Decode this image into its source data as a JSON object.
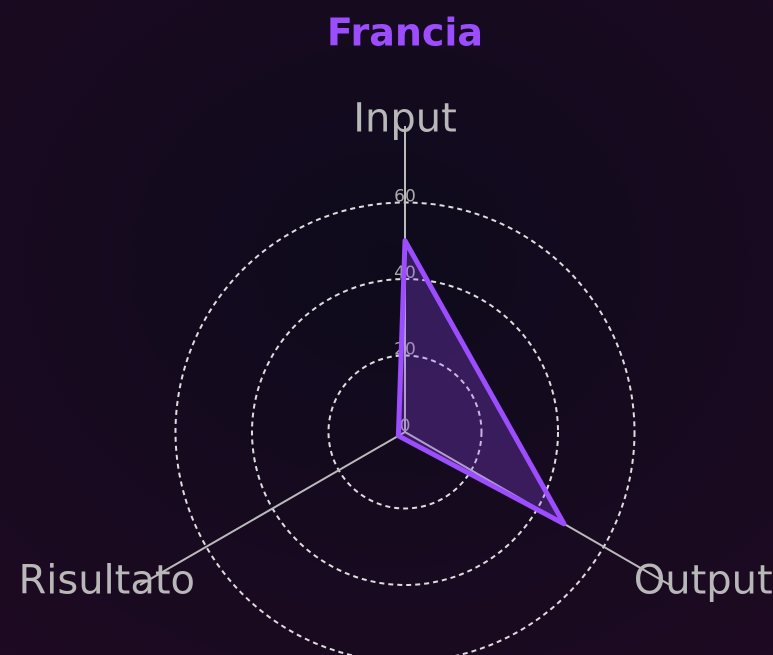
{
  "chart_data": {
    "type": "radar",
    "title": "Francia",
    "categories": [
      "Input",
      "Output",
      "Risultato"
    ],
    "series": [
      {
        "name": "Francia",
        "color": "#9b4dff",
        "values": [
          50,
          48,
          2
        ]
      }
    ],
    "ylim": [
      0,
      80
    ],
    "yticks": [
      0,
      20,
      40,
      60
    ],
    "grid": true
  }
}
